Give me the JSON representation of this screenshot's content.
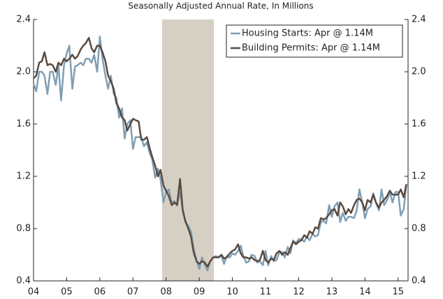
{
  "chart_data": {
    "type": "line",
    "title": "Seasonally Adjusted Annual Rate, In Millions",
    "x": [
      2004.0,
      2004.08,
      2004.17,
      2004.25,
      2004.33,
      2004.42,
      2004.5,
      2004.58,
      2004.67,
      2004.75,
      2004.83,
      2004.92,
      2005.0,
      2005.08,
      2005.17,
      2005.25,
      2005.33,
      2005.42,
      2005.5,
      2005.58,
      2005.67,
      2005.75,
      2005.83,
      2005.92,
      2006.0,
      2006.08,
      2006.17,
      2006.25,
      2006.33,
      2006.42,
      2006.5,
      2006.58,
      2006.67,
      2006.75,
      2006.83,
      2006.92,
      2007.0,
      2007.08,
      2007.17,
      2007.25,
      2007.33,
      2007.42,
      2007.5,
      2007.58,
      2007.67,
      2007.75,
      2007.83,
      2007.92,
      2008.0,
      2008.08,
      2008.17,
      2008.25,
      2008.33,
      2008.42,
      2008.5,
      2008.58,
      2008.67,
      2008.75,
      2008.83,
      2008.92,
      2009.0,
      2009.08,
      2009.17,
      2009.25,
      2009.33,
      2009.42,
      2009.5,
      2009.58,
      2009.67,
      2009.75,
      2009.83,
      2009.92,
      2010.0,
      2010.08,
      2010.17,
      2010.25,
      2010.33,
      2010.42,
      2010.5,
      2010.58,
      2010.67,
      2010.75,
      2010.83,
      2010.92,
      2011.0,
      2011.08,
      2011.17,
      2011.25,
      2011.33,
      2011.42,
      2011.5,
      2011.58,
      2011.67,
      2011.75,
      2011.83,
      2011.92,
      2012.0,
      2012.08,
      2012.17,
      2012.25,
      2012.33,
      2012.42,
      2012.5,
      2012.58,
      2012.67,
      2012.75,
      2012.83,
      2012.92,
      2013.0,
      2013.08,
      2013.17,
      2013.25,
      2013.33,
      2013.42,
      2013.5,
      2013.58,
      2013.67,
      2013.75,
      2013.83,
      2013.92,
      2014.0,
      2014.08,
      2014.17,
      2014.25,
      2014.33,
      2014.42,
      2014.5,
      2014.58,
      2014.67,
      2014.75,
      2014.83,
      2014.92,
      2015.0,
      2015.08,
      2015.17,
      2015.25
    ],
    "series": [
      {
        "name": "Housing Starts: Apr @ 1.14M",
        "color": "#7f9fb5",
        "values": [
          1.91,
          1.85,
          2.0,
          2.0,
          1.97,
          1.83,
          2.0,
          2.0,
          1.9,
          2.05,
          1.78,
          2.05,
          2.14,
          2.2,
          1.87,
          2.04,
          2.05,
          2.07,
          2.05,
          2.1,
          2.1,
          2.07,
          2.13,
          2.0,
          2.27,
          2.1,
          1.97,
          1.87,
          1.97,
          1.83,
          1.8,
          1.65,
          1.72,
          1.49,
          1.6,
          1.63,
          1.41,
          1.5,
          1.5,
          1.5,
          1.43,
          1.46,
          1.38,
          1.33,
          1.19,
          1.26,
          1.18,
          1.0,
          1.08,
          1.1,
          1.0,
          1.01,
          0.98,
          1.08,
          0.95,
          0.85,
          0.82,
          0.78,
          0.65,
          0.55,
          0.49,
          0.58,
          0.52,
          0.48,
          0.55,
          0.58,
          0.59,
          0.58,
          0.59,
          0.53,
          0.59,
          0.58,
          0.61,
          0.6,
          0.63,
          0.67,
          0.59,
          0.54,
          0.55,
          0.6,
          0.59,
          0.54,
          0.55,
          0.52,
          0.63,
          0.52,
          0.59,
          0.55,
          0.56,
          0.62,
          0.62,
          0.58,
          0.66,
          0.61,
          0.71,
          0.69,
          0.72,
          0.72,
          0.7,
          0.74,
          0.71,
          0.76,
          0.74,
          0.75,
          0.85,
          0.86,
          0.84,
          0.98,
          0.89,
          0.97,
          1.0,
          0.85,
          0.92,
          0.86,
          0.89,
          0.89,
          0.88,
          0.94,
          1.1,
          1.0,
          0.88,
          0.95,
          0.97,
          1.07,
          1.0,
          0.94,
          1.1,
          0.98,
          1.02,
          1.08,
          1.0,
          1.08,
          1.08,
          0.9,
          0.95,
          1.14
        ]
      },
      {
        "name": "Building Permits: Apr @ 1.14M",
        "color": "#5a4a3f",
        "values": [
          1.95,
          1.97,
          2.07,
          2.08,
          2.15,
          2.05,
          2.06,
          2.05,
          2.0,
          2.07,
          2.05,
          2.1,
          2.08,
          2.1,
          2.13,
          2.1,
          2.12,
          2.17,
          2.2,
          2.22,
          2.26,
          2.18,
          2.15,
          2.2,
          2.2,
          2.15,
          2.08,
          1.97,
          1.93,
          1.87,
          1.76,
          1.72,
          1.65,
          1.63,
          1.55,
          1.6,
          1.64,
          1.63,
          1.62,
          1.48,
          1.48,
          1.5,
          1.42,
          1.35,
          1.28,
          1.2,
          1.25,
          1.13,
          1.09,
          1.05,
          0.98,
          1.0,
          0.98,
          1.18,
          0.94,
          0.86,
          0.8,
          0.74,
          0.62,
          0.55,
          0.53,
          0.55,
          0.54,
          0.51,
          0.55,
          0.58,
          0.58,
          0.58,
          0.6,
          0.57,
          0.58,
          0.61,
          0.63,
          0.64,
          0.68,
          0.61,
          0.58,
          0.58,
          0.57,
          0.58,
          0.56,
          0.55,
          0.56,
          0.63,
          0.56,
          0.54,
          0.57,
          0.56,
          0.61,
          0.63,
          0.6,
          0.62,
          0.6,
          0.65,
          0.7,
          0.68,
          0.7,
          0.71,
          0.75,
          0.73,
          0.78,
          0.76,
          0.81,
          0.8,
          0.88,
          0.87,
          0.88,
          0.91,
          0.94,
          0.95,
          0.9,
          1.0,
          0.97,
          0.91,
          0.95,
          0.92,
          0.98,
          1.02,
          1.03,
          1.0,
          0.94,
          1.02,
          1.0,
          1.06,
          1.0,
          0.96,
          1.0,
          1.02,
          1.05,
          1.09,
          1.06,
          1.06,
          1.06,
          1.1,
          1.04,
          1.14
        ]
      }
    ],
    "shaded_region": {
      "x": [
        2007.88,
        2009.44
      ],
      "color": "#d6d0c4"
    },
    "xlim": [
      1995.96,
      2015.3
    ],
    "xticks": [
      {
        "value": 2004,
        "label": "04"
      },
      {
        "value": 2005,
        "label": "05"
      },
      {
        "value": 2006,
        "label": "06"
      },
      {
        "value": 2007,
        "label": "07"
      },
      {
        "value": 2008,
        "label": "08"
      },
      {
        "value": 2009,
        "label": "09"
      },
      {
        "value": 2010,
        "label": "10"
      },
      {
        "value": 2011,
        "label": "11"
      },
      {
        "value": 2012,
        "label": "12"
      },
      {
        "value": 2013,
        "label": "13"
      },
      {
        "value": 2014,
        "label": "14"
      },
      {
        "value": 2015,
        "label": "15"
      }
    ],
    "ylim": [
      0.4,
      2.4
    ],
    "yticks": [
      0.4,
      0.8,
      1.2,
      1.6,
      {
        "value": 2,
        "label": "2.0"
      },
      2.4
    ],
    "y2lim": [
      0.4,
      2.4
    ],
    "y2ticks": [
      0.4,
      0.8,
      1.2,
      1.6,
      {
        "value": 2,
        "label": "2.0"
      },
      2.4
    ],
    "legend": "upper right"
  }
}
